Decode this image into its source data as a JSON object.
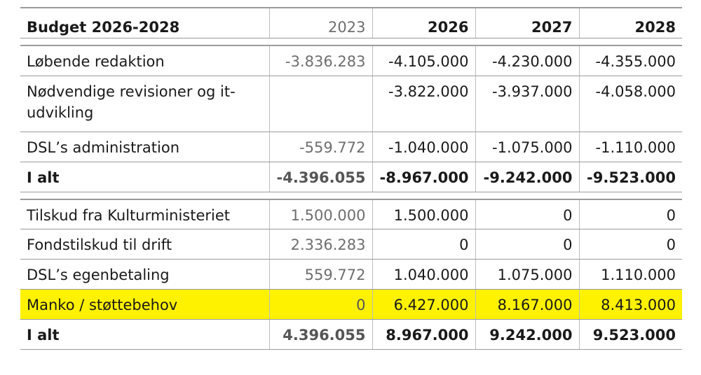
{
  "table": {
    "title": "Budget 2026-2028",
    "years": [
      "2023",
      "2026",
      "2027",
      "2028"
    ],
    "section1": [
      {
        "label": "Løbende redaktion",
        "values": [
          "-3.836.283",
          "-4.105.000",
          "-4.230.000",
          "-4.355.000"
        ]
      },
      {
        "label": "Nødvendige revisioner og it-udvikling",
        "values": [
          "",
          "-3.822.000",
          "-3.937.000",
          "-4.058.000"
        ]
      },
      {
        "label": "DSL’s administration",
        "values": [
          "-559.772",
          "-1.040.000",
          "-1.075.000",
          "-1.110.000"
        ]
      }
    ],
    "total1": {
      "label": "I alt",
      "values": [
        "-4.396.055",
        "-8.967.000",
        "-9.242.000",
        "-9.523.000"
      ]
    },
    "section2": [
      {
        "label": "Tilskud fra Kulturministeriet",
        "values": [
          "1.500.000",
          "1.500.000",
          "0",
          "0"
        ]
      },
      {
        "label": "Fondstilskud til drift",
        "values": [
          "2.336.283",
          "0",
          "0",
          "0"
        ]
      },
      {
        "label": "DSL’s egenbetaling",
        "values": [
          "559.772",
          "1.040.000",
          "1.075.000",
          "1.110.000"
        ]
      },
      {
        "label": "Manko / støttebehov",
        "values": [
          "0",
          "6.427.000",
          "8.167.000",
          "8.413.000"
        ]
      }
    ],
    "total2": {
      "label": "I alt",
      "values": [
        "4.396.055",
        "8.967.000",
        "9.242.000",
        "9.523.000"
      ]
    },
    "highlight_color": "#fff200"
  }
}
